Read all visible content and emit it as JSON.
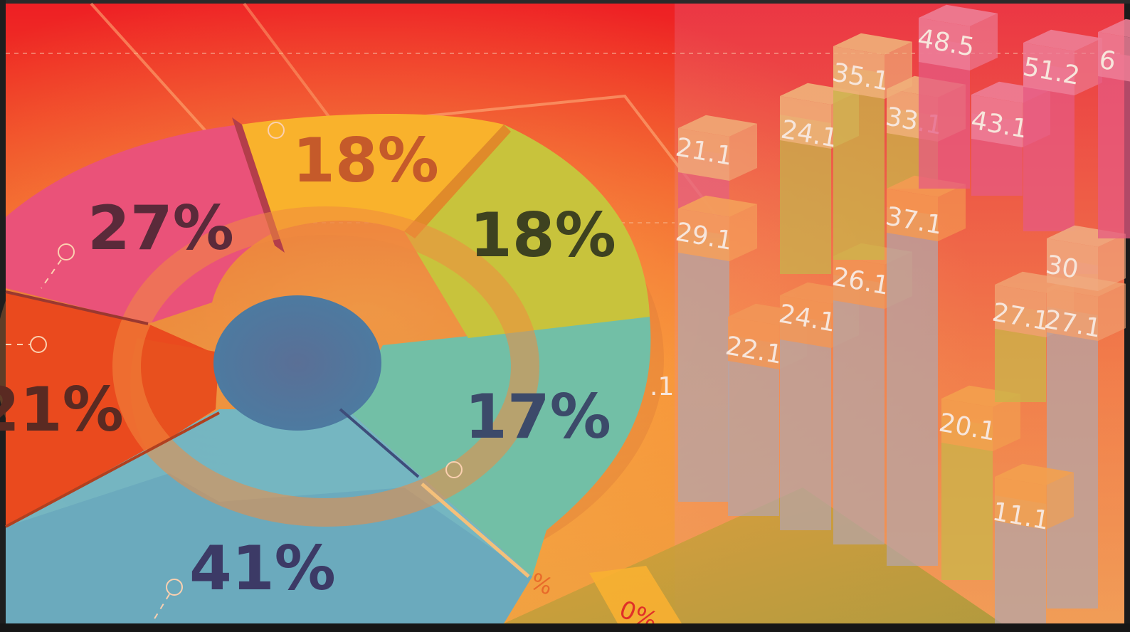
{
  "chart_data": [
    {
      "type": "pie",
      "slices": [
        {
          "label": "41%",
          "value": 41,
          "color": "#6fb7c8"
        },
        {
          "label": "17%",
          "value": 17,
          "color": "#6fbfa8"
        },
        {
          "label": "18%",
          "value": 18,
          "color": "#c6c43a"
        },
        {
          "label": "18%",
          "value": 18,
          "color": "#f7b52c"
        },
        {
          "label": "27%",
          "value": 27,
          "color": "#ea5178"
        },
        {
          "label": "21%",
          "value": 21,
          "color": "#ea4a1e"
        }
      ]
    },
    {
      "type": "bar",
      "values_shown": [
        "21.1",
        "29.1",
        "22.1",
        "24.1",
        "24.1",
        "26.1",
        "35.1",
        "33.1",
        "37.1",
        "48.5",
        "43.1",
        "51.2",
        "20.1",
        "27.1",
        "27.1",
        "30",
        "11.1",
        "6"
      ]
    }
  ],
  "colors": {
    "background_top": "#ee2a22",
    "background_mid": "#f47a2a",
    "pie_label": "#3e3a52",
    "bar_label": "#f7e6dc",
    "bar_face": "#ef9a5a",
    "bar_pink": "#e55a82",
    "bar_olive": "#c9b64a",
    "bar_gray": "#a9a0a6"
  }
}
